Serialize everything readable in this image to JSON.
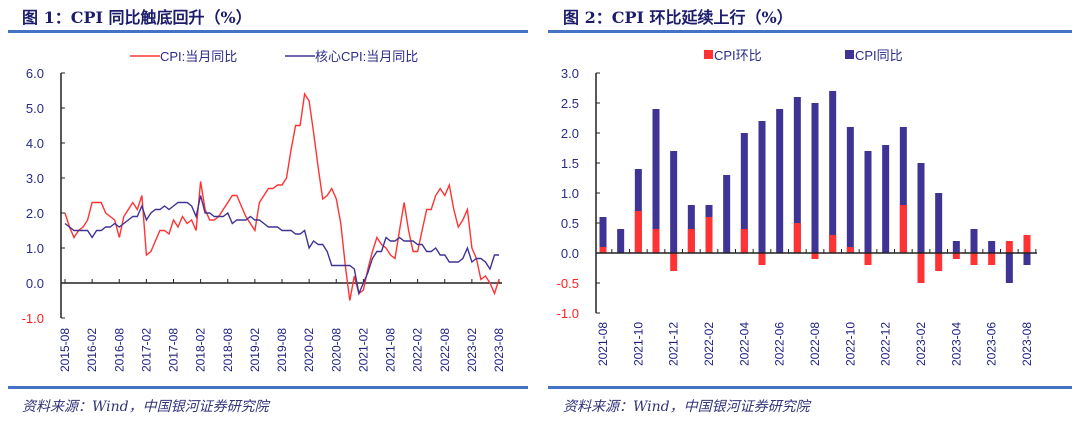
{
  "figure1": {
    "title": "图 1：CPI 同比触底回升（%）",
    "source": "资料来源：Wind，中国银河证券研究院"
  },
  "figure2": {
    "title": "图 2：CPI 环比延续上行（%）",
    "source": "资料来源：Wind，中国银河证券研究院"
  },
  "chart_data": [
    {
      "type": "line",
      "ylim": [
        -1.0,
        6.0
      ],
      "yticks": [
        "6.0",
        "5.0",
        "4.0",
        "3.0",
        "2.0",
        "1.0",
        "0.0",
        "-1.0"
      ],
      "xticks": [
        "2015-08",
        "2016-02",
        "2016-08",
        "2017-02",
        "2017-08",
        "2018-02",
        "2018-08",
        "2019-02",
        "2019-08",
        "2020-02",
        "2020-08",
        "2021-02",
        "2021-08",
        "2022-02",
        "2022-08",
        "2023-02",
        "2023-08"
      ],
      "x_start": "2015-08",
      "x_end": "2023-08",
      "legend": "top",
      "grid": false,
      "series": [
        {
          "name": "CPI:当月同比",
          "color": "#ff3333",
          "values": [
            2.0,
            1.6,
            1.3,
            1.5,
            1.6,
            1.8,
            2.3,
            2.3,
            2.3,
            2.0,
            1.9,
            1.8,
            1.3,
            1.9,
            2.1,
            2.3,
            2.1,
            2.5,
            0.8,
            0.9,
            1.2,
            1.5,
            1.5,
            1.4,
            1.8,
            1.6,
            1.9,
            1.7,
            1.8,
            1.5,
            2.9,
            2.1,
            1.8,
            1.8,
            1.9,
            2.1,
            2.3,
            2.5,
            2.5,
            2.2,
            1.9,
            1.7,
            1.5,
            2.3,
            2.5,
            2.7,
            2.7,
            2.8,
            2.8,
            3.0,
            3.8,
            4.5,
            4.5,
            5.4,
            5.2,
            4.3,
            3.3,
            2.4,
            2.5,
            2.7,
            2.4,
            1.7,
            0.5,
            -0.5,
            0.2,
            -0.3,
            -0.2,
            0.4,
            0.9,
            1.3,
            1.1,
            1.0,
            0.8,
            0.7,
            1.5,
            2.3,
            1.5,
            0.9,
            0.9,
            1.5,
            2.1,
            2.1,
            2.5,
            2.7,
            2.5,
            2.8,
            2.1,
            1.6,
            1.8,
            2.1,
            1.0,
            0.7,
            0.1,
            0.2,
            0.0,
            -0.3,
            0.1
          ]
        },
        {
          "name": "核心CPI:当月同比",
          "color": "#3f3394",
          "values": [
            1.7,
            1.6,
            1.5,
            1.5,
            1.5,
            1.5,
            1.3,
            1.5,
            1.5,
            1.6,
            1.6,
            1.7,
            1.6,
            1.7,
            1.8,
            1.9,
            1.9,
            2.2,
            1.8,
            2.0,
            2.1,
            2.1,
            2.2,
            2.1,
            2.2,
            2.3,
            2.3,
            2.3,
            2.2,
            1.9,
            2.5,
            2.0,
            2.0,
            1.9,
            1.9,
            1.9,
            2.0,
            1.7,
            1.8,
            1.8,
            1.8,
            1.9,
            1.8,
            1.8,
            1.7,
            1.6,
            1.6,
            1.6,
            1.5,
            1.5,
            1.5,
            1.4,
            1.4,
            1.5,
            1.0,
            1.2,
            1.1,
            1.1,
            0.9,
            0.5,
            0.5,
            0.5,
            0.5,
            0.5,
            0.4,
            -0.3,
            0.0,
            0.3,
            0.7,
            0.9,
            0.9,
            1.3,
            1.2,
            1.2,
            1.3,
            1.2,
            1.2,
            1.2,
            1.1,
            1.1,
            0.9,
            0.9,
            1.0,
            0.8,
            0.8,
            0.6,
            0.6,
            0.6,
            0.7,
            1.0,
            0.6,
            0.7,
            0.7,
            0.6,
            0.4,
            0.8,
            0.8
          ]
        }
      ]
    },
    {
      "type": "bar",
      "ylim": [
        -1.0,
        3.0
      ],
      "yticks": [
        "3.0",
        "2.5",
        "2.0",
        "1.5",
        "1.0",
        "0.5",
        "0.0",
        "-0.5",
        "-1.0"
      ],
      "categories": [
        "2021-08",
        "2021-09",
        "2021-10",
        "2021-11",
        "2021-12",
        "2022-01",
        "2022-02",
        "2022-03",
        "2022-04",
        "2022-05",
        "2022-06",
        "2022-07",
        "2022-08",
        "2022-09",
        "2022-10",
        "2022-11",
        "2022-12",
        "2023-01",
        "2023-02",
        "2023-03",
        "2023-04",
        "2023-05",
        "2023-06",
        "2023-07",
        "2023-08"
      ],
      "xticks": [
        "2021-08",
        "2021-10",
        "2021-12",
        "2022-02",
        "2022-04",
        "2022-06",
        "2022-08",
        "2022-10",
        "2022-12",
        "2023-02",
        "2023-04",
        "2023-06",
        "2023-08"
      ],
      "legend": "top",
      "grid": false,
      "series": [
        {
          "name": "CPI同比",
          "color": "#3f3394",
          "values": [
            0.6,
            0.4,
            1.4,
            2.4,
            1.7,
            0.8,
            0.8,
            1.3,
            2.0,
            2.2,
            2.4,
            2.6,
            2.5,
            2.7,
            2.1,
            1.7,
            1.8,
            2.1,
            1.5,
            1.0,
            0.2,
            0.4,
            0.2,
            -0.5,
            -0.2
          ]
        },
        {
          "name": "CPI环比",
          "color": "#ff3333",
          "values": [
            0.1,
            0.0,
            0.7,
            0.4,
            -0.3,
            0.4,
            0.6,
            0.0,
            0.4,
            -0.2,
            0.0,
            0.5,
            -0.1,
            0.3,
            0.1,
            -0.2,
            0.0,
            0.8,
            -0.5,
            -0.3,
            -0.1,
            -0.2,
            -0.2,
            0.2,
            0.3
          ]
        }
      ]
    }
  ]
}
